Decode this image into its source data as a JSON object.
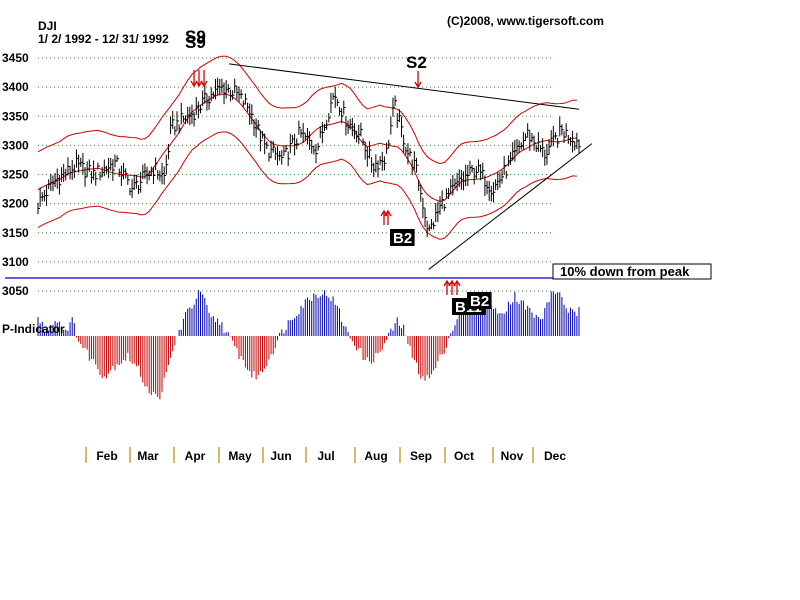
{
  "chart_data": {
    "type": "bar",
    "subtype": "ohlc-price-chart-with-indicator",
    "symbol": "DJI",
    "date_range": "1/ 2/ 1992 - 12/ 31/ 1992",
    "copyright": "(C)2008, www.tigersoft.com",
    "ylim": [
      3050,
      3450
    ],
    "y_ticks": [
      3050,
      3100,
      3150,
      3200,
      3250,
      3300,
      3350,
      3400,
      3450
    ],
    "grid": "horizontal dotted green",
    "x_months": [
      "Feb",
      "Mar",
      "Apr",
      "May",
      "Jun",
      "Jul",
      "Aug",
      "Sep",
      "Oct",
      "Nov",
      "Dec"
    ],
    "indicator_label": "P-Indicator",
    "reference_line": {
      "label": "10% down from peak",
      "value": 3072
    },
    "signals": [
      {
        "label": "S9",
        "month_pos": 3.15,
        "price": 3390
      },
      {
        "label": "S9",
        "month_pos": 3.15,
        "price": 3390
      },
      {
        "label": "S2",
        "month_pos": 8.15,
        "price": 3395
      },
      {
        "label": "B2",
        "month_pos": 7.35,
        "price": 3190
      },
      {
        "label": "B11",
        "month_pos": 9.0,
        "price": 3080
      },
      {
        "label": "B2",
        "month_pos": 9.3,
        "price": 3080
      }
    ],
    "trendlines": [
      {
        "name": "resistance",
        "from": [
          4.45,
          3440
        ],
        "to": [
          12.6,
          3362
        ]
      },
      {
        "name": "support",
        "from": [
          9.1,
          3087
        ],
        "to": [
          12.9,
          3303
        ]
      }
    ],
    "close_anchors": [
      [
        0.0,
        3200
      ],
      [
        0.4,
        3240
      ],
      [
        0.9,
        3265
      ],
      [
        1.3,
        3250
      ],
      [
        1.8,
        3270
      ],
      [
        2.2,
        3225
      ],
      [
        2.7,
        3260
      ],
      [
        2.95,
        3245
      ],
      [
        3.1,
        3330
      ],
      [
        3.6,
        3355
      ],
      [
        4.0,
        3385
      ],
      [
        4.3,
        3400
      ],
      [
        4.6,
        3390
      ],
      [
        4.9,
        3365
      ],
      [
        5.3,
        3295
      ],
      [
        5.7,
        3275
      ],
      [
        6.1,
        3320
      ],
      [
        6.5,
        3295
      ],
      [
        6.9,
        3390
      ],
      [
        7.2,
        3340
      ],
      [
        7.5,
        3320
      ],
      [
        7.8,
        3265
      ],
      [
        8.1,
        3280
      ],
      [
        8.3,
        3370
      ],
      [
        8.6,
        3290
      ],
      [
        8.8,
        3260
      ],
      [
        9.1,
        3150
      ],
      [
        9.4,
        3200
      ],
      [
        9.8,
        3235
      ],
      [
        10.2,
        3260
      ],
      [
        10.6,
        3225
      ],
      [
        11.0,
        3270
      ],
      [
        11.4,
        3320
      ],
      [
        11.8,
        3285
      ],
      [
        12.2,
        3325
      ],
      [
        12.6,
        3305
      ]
    ],
    "indicator_anchors": [
      [
        0.0,
        12
      ],
      [
        0.2,
        3
      ],
      [
        0.45,
        12
      ],
      [
        0.6,
        4
      ],
      [
        0.8,
        10
      ],
      [
        1.0,
        -6
      ],
      [
        1.3,
        -18
      ],
      [
        1.55,
        -28
      ],
      [
        1.8,
        -20
      ],
      [
        2.1,
        -14
      ],
      [
        2.35,
        -24
      ],
      [
        2.55,
        -36
      ],
      [
        2.8,
        -44
      ],
      [
        3.0,
        -26
      ],
      [
        3.2,
        -4
      ],
      [
        3.4,
        12
      ],
      [
        3.6,
        22
      ],
      [
        3.8,
        32
      ],
      [
        4.0,
        12
      ],
      [
        4.25,
        10
      ],
      [
        4.5,
        -4
      ],
      [
        4.75,
        -16
      ],
      [
        5.0,
        -28
      ],
      [
        5.2,
        -26
      ],
      [
        5.4,
        -14
      ],
      [
        5.7,
        4
      ],
      [
        6.0,
        16
      ],
      [
        6.3,
        26
      ],
      [
        6.55,
        30
      ],
      [
        6.8,
        28
      ],
      [
        7.0,
        18
      ],
      [
        7.2,
        2
      ],
      [
        7.45,
        -8
      ],
      [
        7.65,
        -18
      ],
      [
        7.9,
        -14
      ],
      [
        8.1,
        -4
      ],
      [
        8.35,
        10
      ],
      [
        8.55,
        4
      ],
      [
        8.7,
        -14
      ],
      [
        8.9,
        -26
      ],
      [
        9.1,
        -30
      ],
      [
        9.3,
        -20
      ],
      [
        9.5,
        -6
      ],
      [
        9.7,
        8
      ],
      [
        9.9,
        20
      ],
      [
        10.1,
        26
      ],
      [
        10.3,
        18
      ],
      [
        10.5,
        24
      ],
      [
        10.7,
        14
      ],
      [
        10.9,
        20
      ],
      [
        11.1,
        28
      ],
      [
        11.3,
        22
      ],
      [
        11.5,
        16
      ],
      [
        11.7,
        10
      ],
      [
        11.9,
        26
      ],
      [
        12.1,
        32
      ],
      [
        12.3,
        20
      ],
      [
        12.5,
        14
      ],
      [
        12.6,
        18
      ]
    ]
  }
}
